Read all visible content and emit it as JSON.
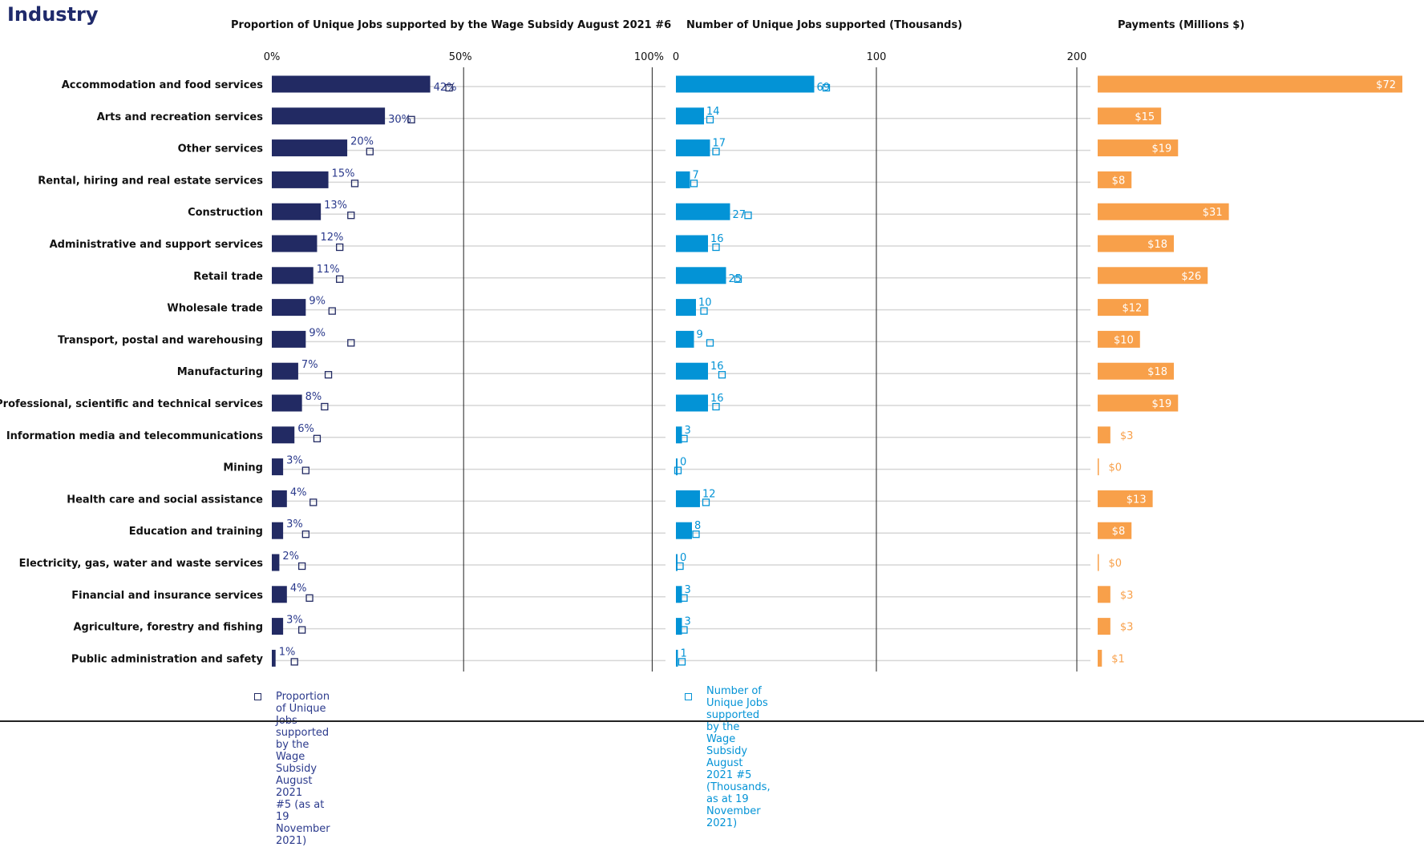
{
  "title": "Industry",
  "colors": {
    "navy": "#222a63",
    "blue": "#0393d6",
    "orange": "#f8a04a",
    "gridline": "#d6d6d6"
  },
  "chart_data": [
    {
      "type": "bar",
      "orientation": "horizontal",
      "title": "Proportion of Unique Jobs supported by the  Wage Subsidy August 2021 #6",
      "axis_ticks": [
        "0%",
        "50%",
        "100%"
      ],
      "xlim": [
        0,
        1.25
      ],
      "categories": [
        "Accommodation and food services",
        "Arts and recreation services",
        "Other services",
        "Rental, hiring and real estate services",
        "Construction",
        "Administrative and support services",
        "Retail trade",
        "Wholesale trade",
        "Transport, postal and warehousing",
        "Manufacturing",
        "Professional, scientific and technical services",
        "Information media and telecommunications",
        "Mining",
        "Health care and social assistance",
        "Education and training",
        "Electricity, gas, water and waste services",
        "Financial and insurance services",
        "Agriculture, forestry and fishing",
        "Public administration and safety"
      ],
      "values": [
        0.42,
        0.3,
        0.2,
        0.15,
        0.13,
        0.12,
        0.11,
        0.09,
        0.09,
        0.07,
        0.08,
        0.06,
        0.03,
        0.04,
        0.03,
        0.02,
        0.04,
        0.03,
        0.01
      ],
      "labels": [
        "42%",
        "30%",
        "20%",
        "15%",
        "13%",
        "12%",
        "11%",
        "9%",
        "9%",
        "7%",
        "8%",
        "6%",
        "3%",
        "4%",
        "3%",
        "2%",
        "4%",
        "3%",
        "1%"
      ],
      "comparison_series": {
        "name": "Proportion of Unique Jobs supported by the Wage Subsidy August 2021 #5 (as at 19 November 2021)",
        "values": [
          0.47,
          0.37,
          0.26,
          0.22,
          0.21,
          0.18,
          0.18,
          0.16,
          0.21,
          0.15,
          0.14,
          0.12,
          0.09,
          0.11,
          0.09,
          0.08,
          0.1,
          0.08,
          0.06
        ]
      }
    },
    {
      "type": "bar",
      "orientation": "horizontal",
      "title": "Number of Unique Jobs supported (Thousands)",
      "axis_ticks": [
        "0",
        "100",
        "200"
      ],
      "xlim": [
        0,
        230
      ],
      "values": [
        69,
        14,
        17,
        7,
        27,
        16,
        25,
        10,
        9,
        16,
        16,
        3,
        0,
        12,
        8,
        0,
        3,
        3,
        1
      ],
      "labels": [
        "69",
        "14",
        "17",
        "7",
        "27",
        "16",
        "25",
        "10",
        "9",
        "16",
        "16",
        "3",
        "0",
        "12",
        "8",
        "0",
        "3",
        "3",
        "1"
      ],
      "comparison_series": {
        "name": "Number of Unique Jobs supported by the Wage Subsidy August 2021 #5 (Thousands, as at 19 November 2021)",
        "values": [
          75,
          17,
          20,
          9,
          36,
          20,
          31,
          14,
          17,
          23,
          20,
          4,
          1,
          15,
          10,
          2,
          4,
          4,
          3
        ]
      }
    },
    {
      "type": "bar",
      "orientation": "horizontal",
      "title": "Payments (Millions $)",
      "xlim": [
        0,
        72
      ],
      "values": [
        72,
        15,
        19,
        8,
        31,
        18,
        26,
        12,
        10,
        18,
        19,
        3,
        0,
        13,
        8,
        0,
        3,
        3,
        1
      ],
      "labels": [
        "$72",
        "$15",
        "$19",
        "$8",
        "$31",
        "$18",
        "$26",
        "$12",
        "$10",
        "$18",
        "$19",
        "$3",
        "$0",
        "$13",
        "$8",
        "$0",
        "$3",
        "$3",
        "$1"
      ]
    }
  ],
  "legend": {
    "left": {
      "line1": "Proportion of Unique Jobs supported by the Wage Subsidy August 2021",
      "line2": "#5 (as at 19 November 2021)"
    },
    "right": {
      "line1": "Number of Unique Jobs supported by the Wage Subsidy August 2021 #5",
      "line2": "(Thousands, as at 19 November 2021)"
    }
  }
}
